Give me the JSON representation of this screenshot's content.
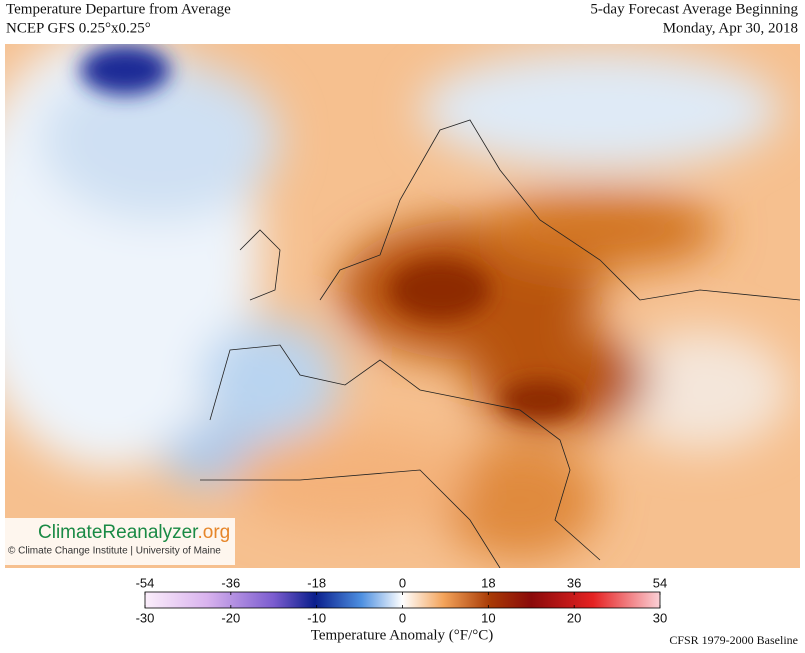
{
  "header": {
    "title": "Temperature Departure from Average",
    "model": "NCEP GFS 0.25°x0.25°",
    "forecast": "5-day Forecast Average Beginning",
    "date": "Monday, Apr 30, 2018"
  },
  "logo": {
    "name_a": "Climate",
    "name_b": "Reanalyzer",
    "name_c": ".org",
    "credit": "© Climate Change Institute | University of Maine"
  },
  "colorbar": {
    "f_ticks": [
      -54,
      -36,
      -18,
      0,
      18,
      36,
      54
    ],
    "c_ticks": [
      -30,
      -20,
      -10,
      0,
      10,
      20,
      30
    ],
    "label": "Temperature Anomaly (°F/°C)",
    "baseline": "CFSR 1979-2000 Baseline"
  }
}
